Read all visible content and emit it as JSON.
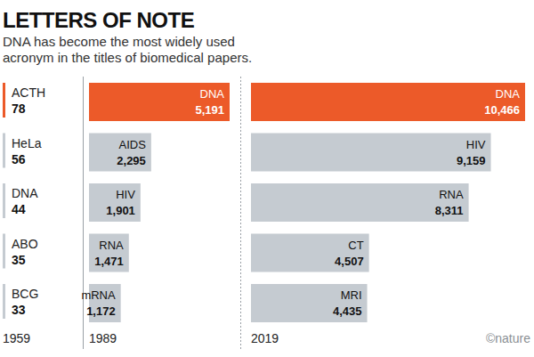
{
  "header": {
    "title": "LETTERS OF NOTE",
    "subtitle": "DNA has become the most widely used acronym in the titles of biomedical papers."
  },
  "credit": "©nature",
  "chart_data": [
    {
      "type": "list",
      "xlabel": "1959",
      "categories": [
        "ACTH",
        "HeLa",
        "DNA",
        "ABO",
        "BCG"
      ],
      "values": [
        78,
        56,
        44,
        35,
        33
      ],
      "colors": [
        "#ec5a29",
        "#c5cbd1",
        "#c5cbd1",
        "#c5cbd1",
        "#c5cbd1"
      ]
    },
    {
      "type": "bar",
      "orientation": "horizontal",
      "xlabel": "1989",
      "categories": [
        "DNA",
        "AIDS",
        "HIV",
        "RNA",
        "mRNA"
      ],
      "values": [
        5191,
        2295,
        1901,
        1471,
        1172
      ],
      "value_labels": [
        "5,191",
        "2,295",
        "1,901",
        "1,471",
        "1,172"
      ],
      "colors": [
        "#ec5a29",
        "#c5cbd1",
        "#c5cbd1",
        "#c5cbd1",
        "#c5cbd1"
      ],
      "xlim": [
        0,
        5191
      ],
      "data_labels": true,
      "tick_labels": false
    },
    {
      "type": "bar",
      "orientation": "horizontal",
      "xlabel": "2019",
      "categories": [
        "DNA",
        "HIV",
        "RNA",
        "CT",
        "MRI"
      ],
      "values": [
        10466,
        9159,
        8311,
        4507,
        4435
      ],
      "value_labels": [
        "10,466",
        "9,159",
        "8,311",
        "4,507",
        "4,435"
      ],
      "colors": [
        "#ec5a29",
        "#c5cbd1",
        "#c5cbd1",
        "#c5cbd1",
        "#c5cbd1"
      ],
      "xlim": [
        0,
        10466
      ],
      "data_labels": true,
      "tick_labels": false
    }
  ]
}
